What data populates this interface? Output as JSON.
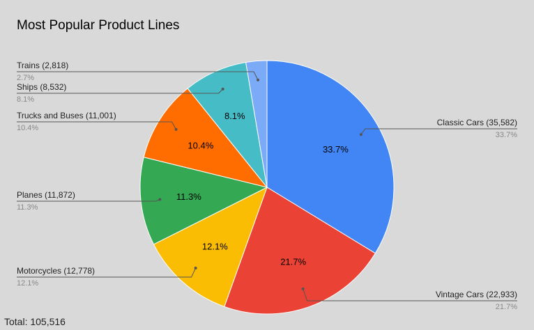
{
  "chart_data": {
    "type": "pie",
    "title": "Most Popular Product Lines",
    "total_label": "Total: 105,516",
    "slices": [
      {
        "label": "Classic Cars",
        "count": "35,582",
        "value": 35582,
        "percent": "33.7%",
        "color": "#4285f4"
      },
      {
        "label": "Vintage Cars",
        "count": "22,933",
        "value": 22933,
        "percent": "21.7%",
        "color": "#ea4335"
      },
      {
        "label": "Motorcycles",
        "count": "12,778",
        "value": 12778,
        "percent": "12.1%",
        "color": "#fbbc04"
      },
      {
        "label": "Planes",
        "count": "11,872",
        "value": 11872,
        "percent": "11.3%",
        "color": "#34a853"
      },
      {
        "label": "Trucks and Buses",
        "count": "11,001",
        "value": 11001,
        "percent": "10.4%",
        "color": "#ff6d01"
      },
      {
        "label": "Ships",
        "count": "8,532",
        "value": 8532,
        "percent": "8.1%",
        "color": "#46bdc6"
      },
      {
        "label": "Trains",
        "count": "2,818",
        "value": 2818,
        "percent": "2.7%",
        "color": "#7baaf7"
      }
    ]
  }
}
